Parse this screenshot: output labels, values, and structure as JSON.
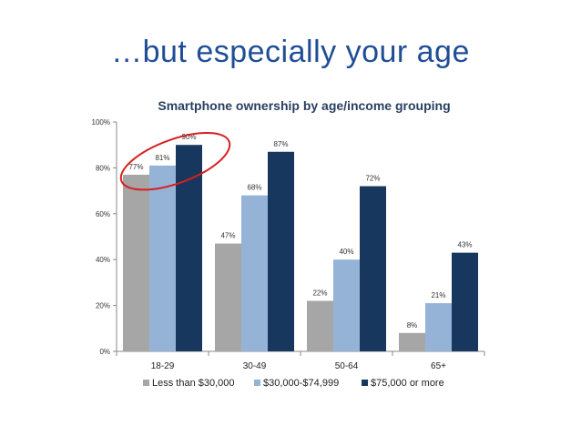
{
  "slide": {
    "title": "…but especially your age"
  },
  "chart_data": {
    "type": "bar",
    "title": "Smartphone ownership by age/income grouping",
    "categories": [
      "18-29",
      "30-49",
      "50-64",
      "65+"
    ],
    "series": [
      {
        "name": "Less than $30,000",
        "values": [
          77,
          47,
          22,
          8
        ],
        "color": "#a6a6a6"
      },
      {
        "name": "$30,000-$74,999",
        "values": [
          81,
          68,
          40,
          21
        ],
        "color": "#95b3d7"
      },
      {
        "name": "$75,000 or more",
        "values": [
          90,
          87,
          72,
          43
        ],
        "color": "#17375e"
      }
    ],
    "ylim": [
      0,
      100
    ],
    "yticks": [
      0,
      20,
      40,
      60,
      80,
      100
    ],
    "ytick_suffix": "%",
    "value_suffix": "%",
    "legend_position": "bottom",
    "grid": false,
    "annotation": {
      "shape": "ellipse",
      "color": "#d62020",
      "target_category": "18-29"
    }
  }
}
